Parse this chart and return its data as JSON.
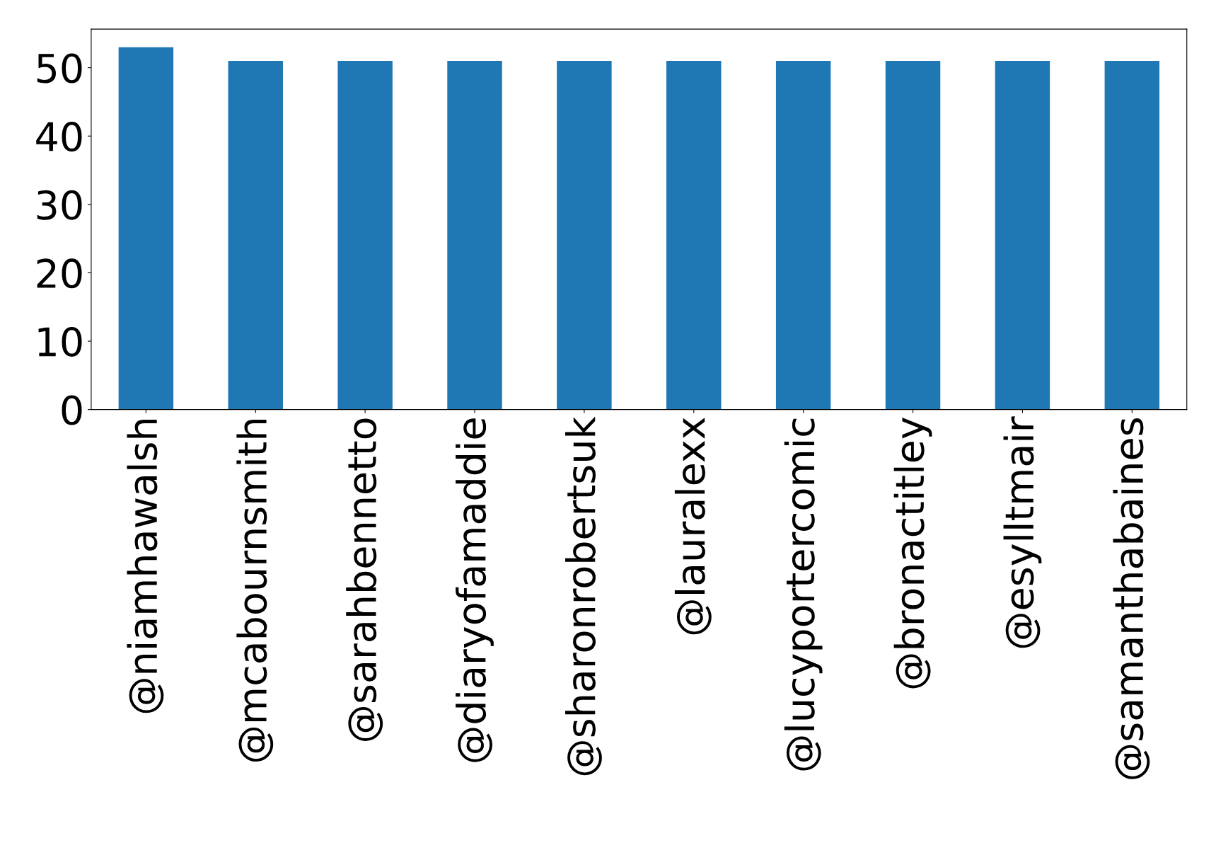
{
  "chart_data": {
    "type": "bar",
    "categories": [
      "@niamhawalsh",
      "@mcabournsmith",
      "@sarahbennetto",
      "@diaryofamaddie",
      "@sharonrobertsuk",
      "@lauralexx",
      "@lucyportercomic",
      "@bronactitley",
      "@esylltmair",
      "@samanthabaines"
    ],
    "values": [
      53,
      51,
      51,
      51,
      51,
      51,
      51,
      51,
      51,
      51
    ],
    "color": "#1f77b4",
    "ylim": [
      0,
      55.65
    ],
    "yticks": [
      0,
      10,
      20,
      30,
      40,
      50
    ],
    "grid": false,
    "legend": false
  }
}
